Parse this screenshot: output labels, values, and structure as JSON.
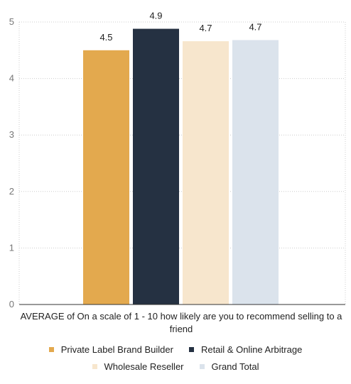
{
  "chart_data": {
    "type": "bar",
    "xlabel": "AVERAGE of On a scale of 1 - 10 how likely are you to recommend selling to a friend",
    "ylim": [
      0,
      5
    ],
    "yticks": [
      0,
      1,
      2,
      3,
      4,
      5
    ],
    "grid": "horizontal dotted",
    "legend_position": "bottom",
    "series": [
      {
        "name": "Private Label Brand Builder",
        "value": 4.5,
        "label": "4.5",
        "color": "#e3a94e"
      },
      {
        "name": "Retail & Online Arbitrage",
        "value": 4.88,
        "label": "4.9",
        "color": "#253142"
      },
      {
        "name": "Wholesale Reseller",
        "value": 4.66,
        "label": "4.7",
        "color": "#f7e6cd"
      },
      {
        "name": "Grand Total",
        "value": 4.68,
        "label": "4.7",
        "color": "#dbe3ec"
      }
    ]
  }
}
